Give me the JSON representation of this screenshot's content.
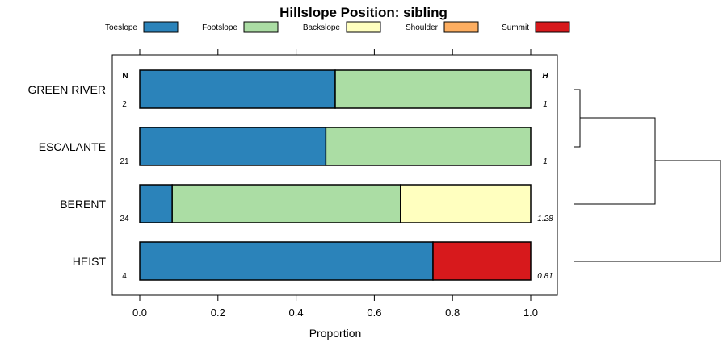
{
  "chart_data": {
    "type": "bar",
    "orientation": "horizontal",
    "stacked": true,
    "title": "Hillslope Position: sibling",
    "xlabel": "Proportion",
    "xlim": [
      0,
      1
    ],
    "xticks": [
      0.0,
      0.2,
      0.4,
      0.6,
      0.8,
      1.0
    ],
    "xtick_labels": [
      "0.0",
      "0.2",
      "0.4",
      "0.6",
      "0.8",
      "1.0"
    ],
    "legend_position": "top",
    "categories": [
      "GREEN RIVER",
      "ESCALANTE",
      "BERENT",
      "HEIST"
    ],
    "series": [
      {
        "name": "Toeslope",
        "color": "#2B83BA",
        "values": [
          0.5,
          0.476,
          0.083,
          0.75
        ]
      },
      {
        "name": "Footslope",
        "color": "#ABDDA4",
        "values": [
          0.5,
          0.524,
          0.584,
          0.0
        ]
      },
      {
        "name": "Backslope",
        "color": "#FFFFBF",
        "values": [
          0.0,
          0.0,
          0.333,
          0.0
        ]
      },
      {
        "name": "Shoulder",
        "color": "#FDAE61",
        "values": [
          0.0,
          0.0,
          0.0,
          0.0
        ]
      },
      {
        "name": "Summit",
        "color": "#D7191C",
        "values": [
          0.0,
          0.0,
          0.0,
          0.25
        ]
      }
    ],
    "n_header": "N",
    "h_header": "H",
    "n_values": [
      "2",
      "21",
      "24",
      "4"
    ],
    "h_values": [
      "1",
      "1",
      "1.28",
      "0.81"
    ],
    "dendrogram": "Green River and Escalante join first, then Berent, then Heist"
  }
}
